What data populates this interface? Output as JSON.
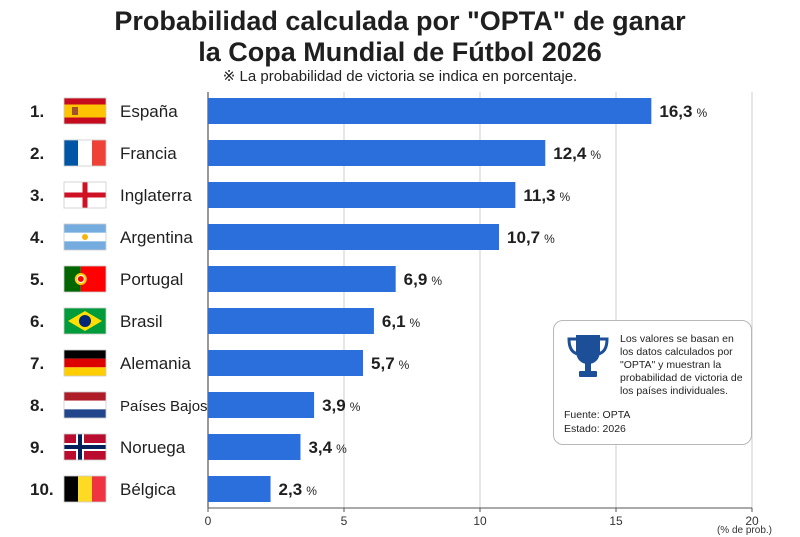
{
  "title_line1": "Probabilidad calculada por \"OPTA\" de ganar",
  "title_line2": "la Copa Mundial de Fútbol 2026",
  "subtitle": "※ La probabilidad de victoria se indica en porcentaje.",
  "note": {
    "text": "Los valores se basan en los datos calculados por \"OPTA\" y muestran la probabilidad de victoria de los países individuales.",
    "source": "Fuente: OPTA",
    "status": "Estado: 2026",
    "icon": "trophy-icon"
  },
  "colors": {
    "bar": "#2a6fdb",
    "axis": "#555555",
    "grid": "#cccccc"
  },
  "chart_data": {
    "type": "bar",
    "orientation": "horizontal",
    "ranks": [
      "1.",
      "2.",
      "3.",
      "4.",
      "5.",
      "6.",
      "7.",
      "8.",
      "9.",
      "10."
    ],
    "categories": [
      "España",
      "Francia",
      "Inglaterra",
      "Argentina",
      "Portugal",
      "Brasil",
      "Alemania",
      "Países Bajos",
      "Noruega",
      "Bélgica"
    ],
    "flags": [
      "spain-flag",
      "france-flag",
      "england-flag",
      "argentina-flag",
      "portugal-flag",
      "brazil-flag",
      "germany-flag",
      "netherlands-flag",
      "norway-flag",
      "belgium-flag"
    ],
    "values": [
      16.3,
      12.4,
      11.3,
      10.7,
      6.9,
      6.1,
      5.7,
      3.9,
      3.4,
      2.3
    ],
    "value_labels": [
      "16,3",
      "12,4",
      "11,3",
      "10,7",
      "6,9",
      "6,1",
      "5,7",
      "3,9",
      "3,4",
      "2,3"
    ],
    "value_unit": "%",
    "xlim": [
      0,
      20
    ],
    "xticks": [
      0,
      5,
      10,
      15,
      20
    ],
    "xtick_labels": [
      "0",
      "5",
      "10",
      "15",
      "20"
    ],
    "xlabel": "(% de prob.)",
    "grid": true
  }
}
